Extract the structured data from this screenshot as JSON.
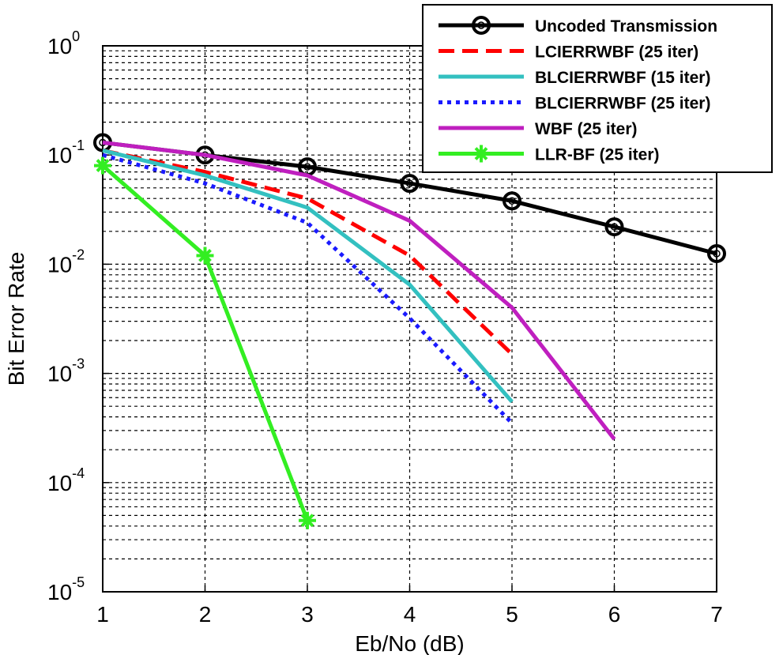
{
  "chart_data": {
    "type": "line",
    "xlabel": "Eb/No (dB)",
    "ylabel": "Bit Error Rate",
    "x_scale": "linear",
    "y_scale": "log",
    "xlim": [
      1,
      7
    ],
    "ylim": [
      1e-05,
      1
    ],
    "xticks": [
      1,
      2,
      3,
      4,
      5,
      6,
      7
    ],
    "yticks": [
      {
        "base": "10",
        "exp": "0",
        "value": 1
      },
      {
        "base": "10",
        "exp": "-1",
        "value": 0.1
      },
      {
        "base": "10",
        "exp": "-2",
        "value": 0.01
      },
      {
        "base": "10",
        "exp": "-3",
        "value": 0.001
      },
      {
        "base": "10",
        "exp": "-4",
        "value": 0.0001
      },
      {
        "base": "10",
        "exp": "-5",
        "value": 1e-05
      }
    ],
    "grid": true,
    "legend_position": "top-right",
    "series": [
      {
        "name": "Uncoded Transmission",
        "color": "#000000",
        "dash": "solid",
        "marker": "circle",
        "x": [
          1,
          2,
          3,
          4,
          5,
          6,
          7
        ],
        "y": [
          0.13,
          0.1,
          0.078,
          0.055,
          0.038,
          0.022,
          0.0125
        ]
      },
      {
        "name": "LCIERRWBF (25 iter)",
        "color": "#ff0000",
        "dash": "dashed",
        "marker": "none",
        "x": [
          1,
          2,
          3,
          4,
          5
        ],
        "y": [
          0.11,
          0.07,
          0.04,
          0.012,
          0.0015
        ]
      },
      {
        "name": "BLCIERRWBF (15 iter)",
        "color": "#33c0c0",
        "dash": "solid",
        "marker": "none",
        "x": [
          1,
          2,
          3,
          4,
          5
        ],
        "y": [
          0.11,
          0.065,
          0.033,
          0.0065,
          0.00055
        ]
      },
      {
        "name": "BLCIERRWBF (25 iter)",
        "color": "#1a1aff",
        "dash": "dotted",
        "marker": "none",
        "x": [
          1,
          2,
          3,
          4,
          5
        ],
        "y": [
          0.1,
          0.055,
          0.024,
          0.0032,
          0.00035
        ]
      },
      {
        "name": "WBF (25 iter)",
        "color": "#bf1fbf",
        "dash": "solid",
        "marker": "none",
        "x": [
          1,
          2,
          3,
          4,
          5,
          6
        ],
        "y": [
          0.13,
          0.1,
          0.065,
          0.025,
          0.004,
          0.00025
        ]
      },
      {
        "name": "LLR-BF (25 iter)",
        "color": "#33ee22",
        "dash": "solid",
        "marker": "star",
        "x": [
          1,
          2,
          3
        ],
        "y": [
          0.08,
          0.012,
          4.5e-05
        ]
      }
    ]
  }
}
